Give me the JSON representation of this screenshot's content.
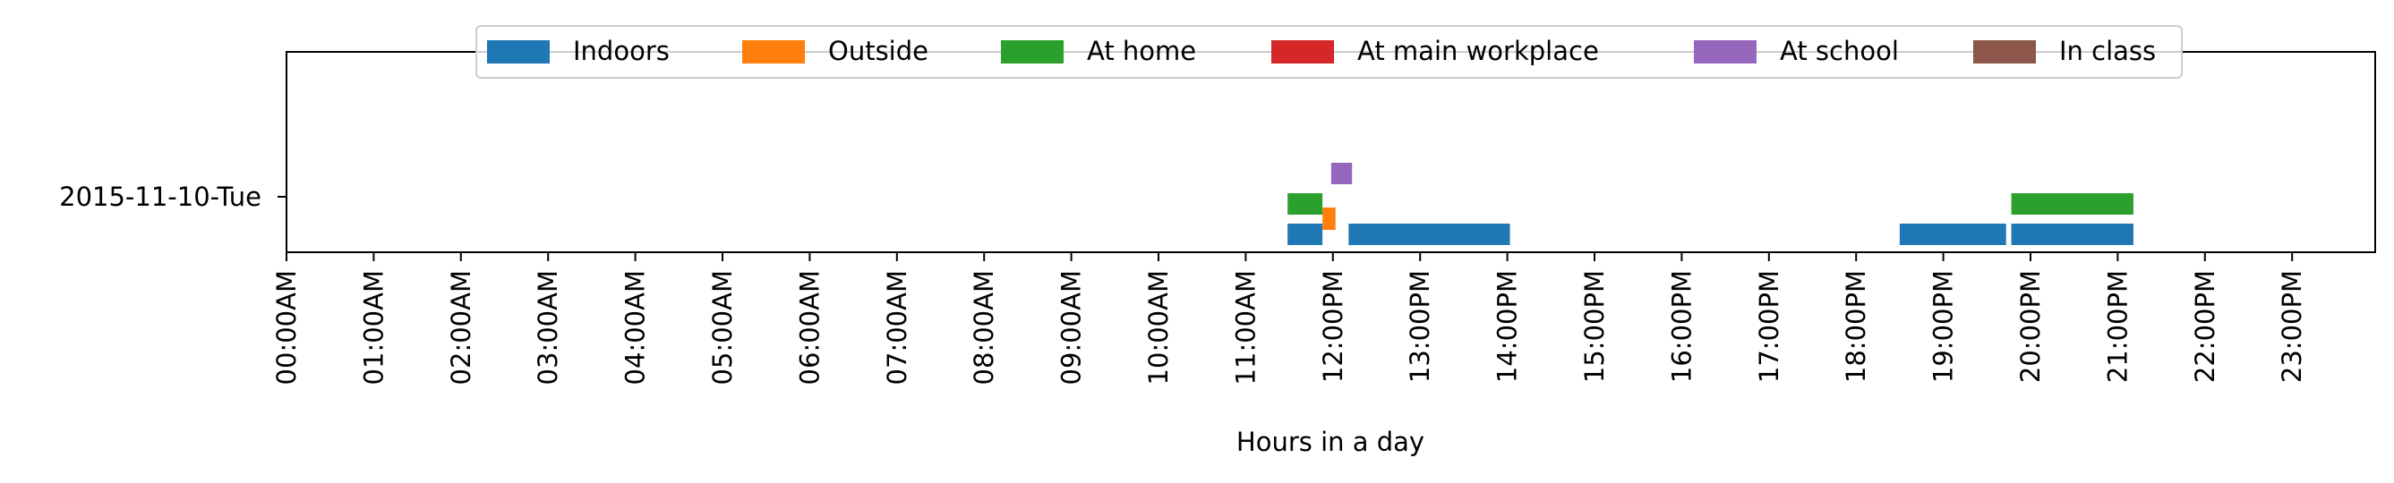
{
  "chart_data": {
    "type": "timeline",
    "title": "",
    "xlabel": "Hours in a day",
    "ylabel": "",
    "xlim": [
      0,
      24
    ],
    "y_categories": [
      "2015-11-10-Tue"
    ],
    "x_ticks": [
      {
        "value": 0,
        "label": "00:00AM"
      },
      {
        "value": 1,
        "label": "01:00AM"
      },
      {
        "value": 2,
        "label": "02:00AM"
      },
      {
        "value": 3,
        "label": "03:00AM"
      },
      {
        "value": 4,
        "label": "04:00AM"
      },
      {
        "value": 5,
        "label": "05:00AM"
      },
      {
        "value": 6,
        "label": "06:00AM"
      },
      {
        "value": 7,
        "label": "07:00AM"
      },
      {
        "value": 8,
        "label": "08:00AM"
      },
      {
        "value": 9,
        "label": "09:00AM"
      },
      {
        "value": 10,
        "label": "10:00AM"
      },
      {
        "value": 11,
        "label": "11:00AM"
      },
      {
        "value": 12,
        "label": "12:00PM"
      },
      {
        "value": 13,
        "label": "13:00PM"
      },
      {
        "value": 14,
        "label": "14:00PM"
      },
      {
        "value": 15,
        "label": "15:00PM"
      },
      {
        "value": 16,
        "label": "16:00PM"
      },
      {
        "value": 17,
        "label": "17:00PM"
      },
      {
        "value": 18,
        "label": "18:00PM"
      },
      {
        "value": 19,
        "label": "19:00PM"
      },
      {
        "value": 20,
        "label": "20:00PM"
      },
      {
        "value": 21,
        "label": "21:00PM"
      },
      {
        "value": 22,
        "label": "22:00PM"
      },
      {
        "value": 23,
        "label": "23:00PM"
      }
    ],
    "legend_position": "top-center",
    "series": [
      {
        "name": "Indoors",
        "color": "#1f77b4",
        "intervals": [
          {
            "day": "2015-11-10-Tue",
            "start": 11.48,
            "end": 11.88
          },
          {
            "day": "2015-11-10-Tue",
            "start": 12.18,
            "end": 14.03
          },
          {
            "day": "2015-11-10-Tue",
            "start": 18.5,
            "end": 19.72
          },
          {
            "day": "2015-11-10-Tue",
            "start": 19.78,
            "end": 21.18
          }
        ]
      },
      {
        "name": "Outside",
        "color": "#ff7f0e",
        "intervals": [
          {
            "day": "2015-11-10-Tue",
            "start": 11.88,
            "end": 12.03
          }
        ]
      },
      {
        "name": "At home",
        "color": "#2ca02c",
        "intervals": [
          {
            "day": "2015-11-10-Tue",
            "start": 11.48,
            "end": 11.88
          },
          {
            "day": "2015-11-10-Tue",
            "start": 19.78,
            "end": 21.18
          }
        ]
      },
      {
        "name": "At main workplace",
        "color": "#d62728",
        "intervals": []
      },
      {
        "name": "At school",
        "color": "#9467bd",
        "intervals": [
          {
            "day": "2015-11-10-Tue",
            "start": 11.98,
            "end": 12.22
          }
        ]
      },
      {
        "name": "In class",
        "color": "#8c564b",
        "intervals": []
      }
    ]
  }
}
